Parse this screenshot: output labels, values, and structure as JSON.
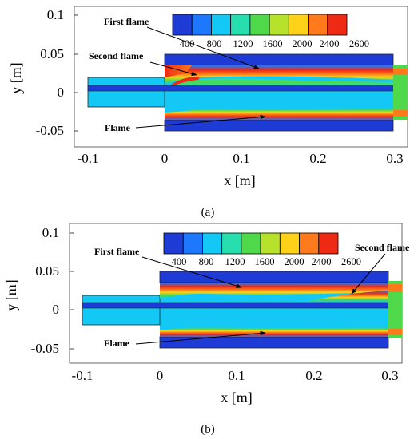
{
  "colorbar": {
    "ticks": [
      "400",
      "800",
      "1200",
      "1600",
      "2000",
      "2400",
      "2600"
    ],
    "colors": [
      "#1f3bd6",
      "#1e78ff",
      "#14c8f5",
      "#27dfae",
      "#4fd84a",
      "#b7e22b",
      "#ffd21a",
      "#ff7a1a",
      "#ee2a14"
    ]
  },
  "panels": [
    {
      "id": "a",
      "caption": "(a)",
      "xlabel": "x [m]",
      "ylabel": "y [m]",
      "x_ticks": [
        "-0.1",
        "0",
        "0.1",
        "0.2",
        "0.3"
      ],
      "y_ticks": [
        "0.1",
        "0.05",
        "0",
        "-0.05"
      ],
      "annotations": {
        "first_flame": "First flame",
        "second_flame": "Second flame",
        "flame": "Flame"
      }
    },
    {
      "id": "b",
      "caption": "(b)",
      "xlabel": "x [m]",
      "ylabel": "y [m]",
      "x_ticks": [
        "-0.1",
        "0",
        "0.1",
        "0.2",
        "0.3"
      ],
      "y_ticks": [
        "0.1",
        "0.05",
        "0",
        "-0.05"
      ],
      "annotations": {
        "first_flame": "First flame",
        "second_flame": "Second flame",
        "flame": "Flame"
      }
    }
  ]
}
